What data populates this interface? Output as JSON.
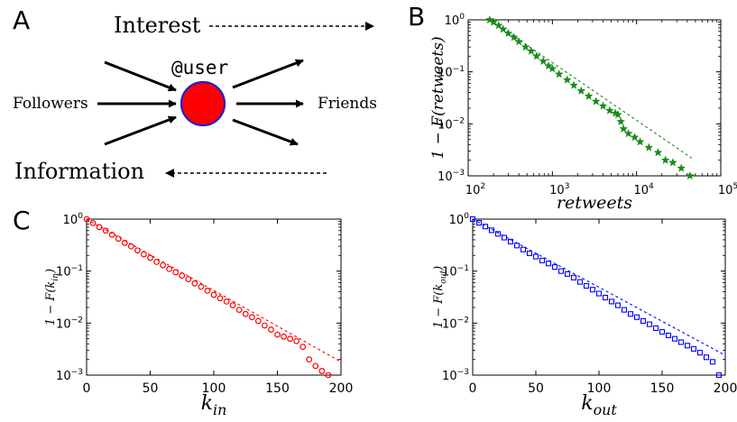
{
  "panel_labels": {
    "a": "A",
    "b": "B",
    "c": "C"
  },
  "diagram": {
    "user_label": "@user",
    "followers_label": "Followers",
    "friends_label": "Friends",
    "interest_label": "Interest",
    "information_label": "Information",
    "node_fill": "#ff0000",
    "node_stroke": "#1f1fd0"
  },
  "chart_data": [
    {
      "id": "retweets",
      "type": "scatter",
      "xscale": "log",
      "yscale": "log",
      "xlim": [
        100,
        100000
      ],
      "ylim": [
        0.001,
        1
      ],
      "xlabel": "retweets",
      "ylabel": "1 − F(retweets)",
      "xticks": [
        100,
        1000,
        10000,
        100000
      ],
      "xtick_labels": [
        "10^2",
        "10^3",
        "10^4",
        "10^5"
      ],
      "yticks": [
        0.001,
        0.01,
        0.1,
        1
      ],
      "ytick_labels": [
        "10^-3",
        "10^-2",
        "10^-1",
        "10^0"
      ],
      "color": "#1a8a1a",
      "marker": "star",
      "x": [
        180,
        200,
        230,
        260,
        300,
        350,
        400,
        480,
        560,
        650,
        780,
        900,
        1000,
        1200,
        1500,
        1800,
        2200,
        2700,
        3300,
        4000,
        4800,
        5600,
        6000,
        6500,
        7000,
        8000,
        9500,
        11000,
        14000,
        18000,
        22000,
        27000,
        34000,
        43000
      ],
      "y": [
        1,
        0.9,
        0.78,
        0.66,
        0.55,
        0.46,
        0.38,
        0.3,
        0.25,
        0.2,
        0.16,
        0.13,
        0.115,
        0.09,
        0.07,
        0.055,
        0.043,
        0.034,
        0.027,
        0.022,
        0.018,
        0.016,
        0.015,
        0.011,
        0.008,
        0.0065,
        0.0055,
        0.0045,
        0.0035,
        0.0028,
        0.002,
        0.0018,
        0.0014,
        0.001
      ],
      "fit": {
        "x": [
          200,
          45000
        ],
        "y": [
          0.9,
          0.0022
        ]
      }
    },
    {
      "id": "k_in",
      "type": "scatter",
      "xscale": "linear",
      "yscale": "log",
      "xlim": [
        0,
        200
      ],
      "ylim": [
        0.001,
        1
      ],
      "xlabel": "k_in",
      "ylabel": "1 − F(k_in)",
      "xticks": [
        0,
        50,
        100,
        150,
        200
      ],
      "xtick_labels": [
        "0",
        "50",
        "100",
        "150",
        "200"
      ],
      "yticks": [
        0.001,
        0.01,
        0.1,
        1
      ],
      "ytick_labels": [
        "10^-3",
        "10^-2",
        "10^-1",
        "10^0"
      ],
      "color": "#ff0000",
      "marker": "circle",
      "x": [
        0,
        5,
        10,
        15,
        20,
        25,
        30,
        35,
        40,
        45,
        50,
        55,
        60,
        65,
        70,
        75,
        80,
        85,
        90,
        95,
        100,
        105,
        110,
        115,
        120,
        125,
        130,
        135,
        140,
        145,
        150,
        155,
        160,
        165,
        170,
        175,
        180,
        185,
        190
      ],
      "y": [
        1,
        0.84,
        0.7,
        0.6,
        0.5,
        0.42,
        0.35,
        0.3,
        0.25,
        0.21,
        0.18,
        0.15,
        0.13,
        0.11,
        0.095,
        0.082,
        0.07,
        0.058,
        0.05,
        0.042,
        0.035,
        0.03,
        0.026,
        0.022,
        0.018,
        0.015,
        0.013,
        0.011,
        0.009,
        0.0075,
        0.006,
        0.0055,
        0.005,
        0.0045,
        0.0035,
        0.002,
        0.0015,
        0.0012,
        0.001
      ],
      "fit": {
        "x": [
          0,
          200
        ],
        "y": [
          1,
          0.0018
        ]
      }
    },
    {
      "id": "k_out",
      "type": "scatter",
      "xscale": "linear",
      "yscale": "log",
      "xlim": [
        0,
        200
      ],
      "ylim": [
        0.001,
        1
      ],
      "xlabel": "k_out",
      "ylabel": "1 − F(k_out)",
      "xticks": [
        0,
        50,
        100,
        150,
        200
      ],
      "xtick_labels": [
        "0",
        "50",
        "100",
        "150",
        "200"
      ],
      "yticks": [
        0.001,
        0.01,
        0.1,
        1
      ],
      "ytick_labels": [
        "10^-3",
        "10^-2",
        "10^-1",
        "10^0"
      ],
      "color": "#0000ff",
      "marker": "square",
      "x": [
        0,
        5,
        10,
        15,
        20,
        25,
        30,
        35,
        40,
        45,
        50,
        55,
        60,
        65,
        70,
        75,
        80,
        85,
        90,
        95,
        100,
        105,
        110,
        115,
        120,
        125,
        130,
        135,
        140,
        145,
        150,
        155,
        160,
        165,
        170,
        175,
        180,
        185,
        190,
        195
      ],
      "y": [
        1,
        0.85,
        0.72,
        0.61,
        0.52,
        0.44,
        0.37,
        0.31,
        0.26,
        0.22,
        0.19,
        0.16,
        0.14,
        0.12,
        0.1,
        0.088,
        0.075,
        0.062,
        0.052,
        0.044,
        0.037,
        0.031,
        0.026,
        0.022,
        0.018,
        0.015,
        0.013,
        0.011,
        0.0095,
        0.008,
        0.0068,
        0.0058,
        0.005,
        0.0043,
        0.0037,
        0.0032,
        0.0027,
        0.0022,
        0.0018,
        0.001
      ],
      "fit": {
        "x": [
          0,
          200
        ],
        "y": [
          1,
          0.0024
        ]
      }
    }
  ]
}
